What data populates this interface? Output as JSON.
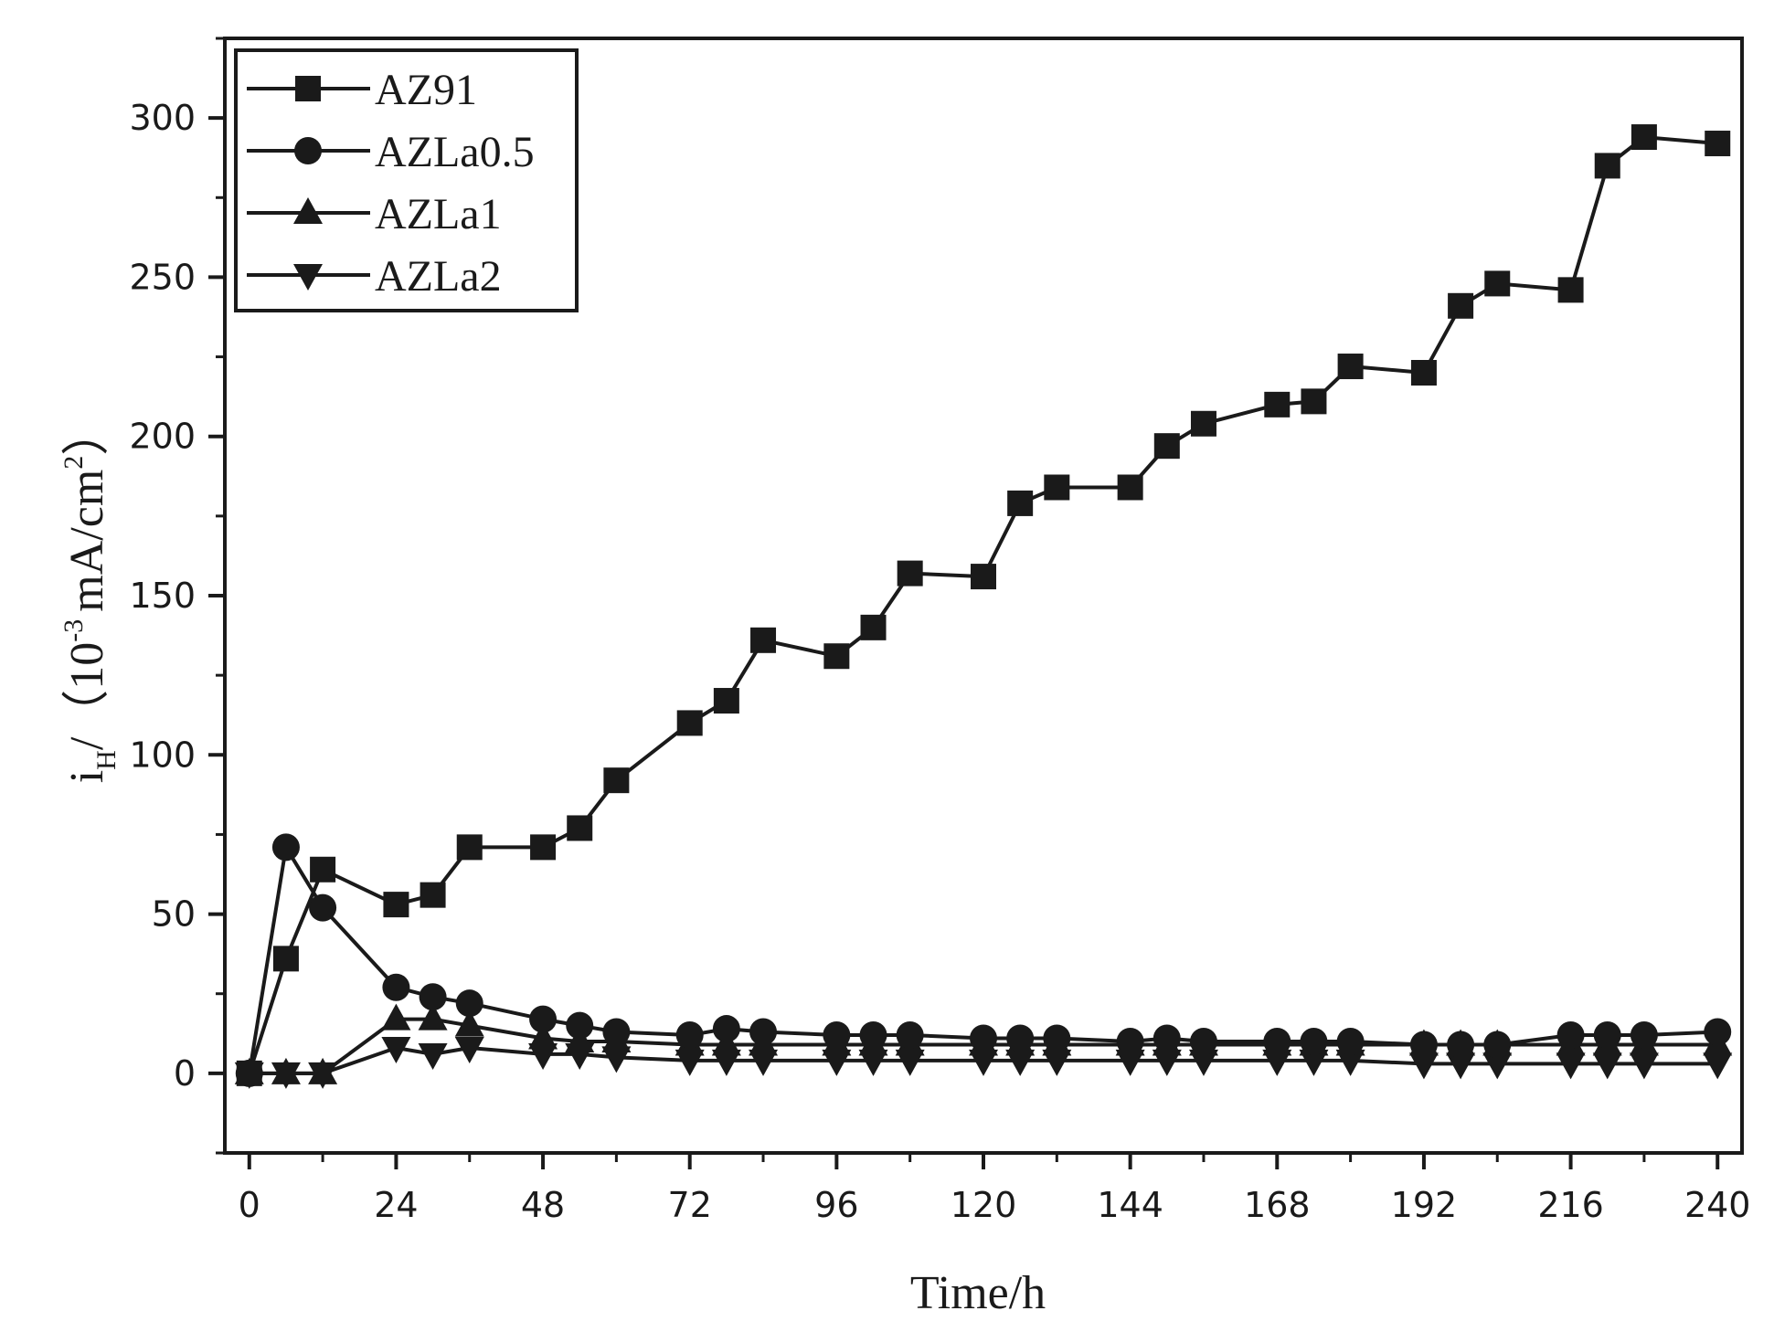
{
  "chart_data": {
    "type": "line",
    "title": "",
    "xlabel": "Time/h",
    "ylabel": {
      "base": "i",
      "subscript": "H",
      "open": "/（10",
      "exponent": "-3",
      "unit": "mA/cm",
      "unit_exponent": "2",
      "close": "）"
    },
    "xlim": [
      -4,
      244
    ],
    "ylim": [
      -25,
      325
    ],
    "xticks": [
      "0",
      "24",
      "48",
      "72",
      "96",
      "120",
      "144",
      "168",
      "192",
      "216",
      "240"
    ],
    "xtick_values": [
      0,
      24,
      48,
      72,
      96,
      120,
      144,
      168,
      192,
      216,
      240
    ],
    "yticks": [
      "0",
      "50",
      "100",
      "150",
      "200",
      "250",
      "300"
    ],
    "ytick_values": [
      0,
      50,
      100,
      150,
      200,
      250,
      300
    ],
    "grid": false,
    "legend_position": "top-left",
    "series": [
      {
        "name": "AZ91",
        "marker": "square",
        "points": [
          [
            0,
            0
          ],
          [
            6,
            36
          ],
          [
            12,
            64
          ],
          [
            24,
            53
          ],
          [
            30,
            56
          ],
          [
            36,
            71
          ],
          [
            48,
            71
          ],
          [
            54,
            77
          ],
          [
            60,
            92
          ],
          [
            72,
            110
          ],
          [
            78,
            117
          ],
          [
            84,
            136
          ],
          [
            96,
            131
          ],
          [
            102,
            140
          ],
          [
            108,
            157
          ],
          [
            120,
            156
          ],
          [
            126,
            179
          ],
          [
            132,
            184
          ],
          [
            144,
            184
          ],
          [
            150,
            197
          ],
          [
            156,
            204
          ],
          [
            168,
            210
          ],
          [
            174,
            211
          ],
          [
            180,
            222
          ],
          [
            192,
            220
          ],
          [
            198,
            241
          ],
          [
            204,
            248
          ],
          [
            216,
            246
          ],
          [
            222,
            285
          ],
          [
            228,
            294
          ],
          [
            240,
            292
          ]
        ]
      },
      {
        "name": "AZLa0.5",
        "marker": "circle",
        "points": [
          [
            0,
            0
          ],
          [
            6,
            71
          ],
          [
            12,
            52
          ],
          [
            24,
            27
          ],
          [
            30,
            24
          ],
          [
            36,
            22
          ],
          [
            48,
            17
          ],
          [
            54,
            15
          ],
          [
            60,
            13
          ],
          [
            72,
            12
          ],
          [
            78,
            14
          ],
          [
            84,
            13
          ],
          [
            96,
            12
          ],
          [
            102,
            12
          ],
          [
            108,
            12
          ],
          [
            120,
            11
          ],
          [
            126,
            11
          ],
          [
            132,
            11
          ],
          [
            144,
            10
          ],
          [
            150,
            11
          ],
          [
            156,
            10
          ],
          [
            168,
            10
          ],
          [
            174,
            10
          ],
          [
            180,
            10
          ],
          [
            192,
            9
          ],
          [
            198,
            9
          ],
          [
            204,
            9
          ],
          [
            216,
            12
          ],
          [
            222,
            12
          ],
          [
            228,
            12
          ],
          [
            240,
            13
          ]
        ]
      },
      {
        "name": "AZLa1",
        "marker": "triangle-up",
        "points": [
          [
            0,
            0
          ],
          [
            6,
            0
          ],
          [
            12,
            0
          ],
          [
            24,
            17
          ],
          [
            30,
            17
          ],
          [
            36,
            15
          ],
          [
            48,
            11
          ],
          [
            54,
            10
          ],
          [
            60,
            10
          ],
          [
            72,
            9
          ],
          [
            78,
            9
          ],
          [
            84,
            9
          ],
          [
            96,
            9
          ],
          [
            102,
            9
          ],
          [
            108,
            9
          ],
          [
            120,
            9
          ],
          [
            126,
            9
          ],
          [
            132,
            9
          ],
          [
            144,
            9
          ],
          [
            150,
            9
          ],
          [
            156,
            9
          ],
          [
            168,
            9
          ],
          [
            174,
            9
          ],
          [
            180,
            9
          ],
          [
            192,
            9
          ],
          [
            198,
            9
          ],
          [
            204,
            9
          ],
          [
            216,
            9
          ],
          [
            222,
            9
          ],
          [
            228,
            9
          ],
          [
            240,
            9
          ]
        ]
      },
      {
        "name": "AZLa2",
        "marker": "triangle-down",
        "points": [
          [
            0,
            0
          ],
          [
            6,
            0
          ],
          [
            12,
            0
          ],
          [
            24,
            8
          ],
          [
            30,
            6
          ],
          [
            36,
            8
          ],
          [
            48,
            6
          ],
          [
            54,
            6
          ],
          [
            60,
            5
          ],
          [
            72,
            4
          ],
          [
            78,
            4
          ],
          [
            84,
            4
          ],
          [
            96,
            4
          ],
          [
            102,
            4
          ],
          [
            108,
            4
          ],
          [
            120,
            4
          ],
          [
            126,
            4
          ],
          [
            132,
            4
          ],
          [
            144,
            4
          ],
          [
            150,
            4
          ],
          [
            156,
            4
          ],
          [
            168,
            4
          ],
          [
            174,
            4
          ],
          [
            180,
            4
          ],
          [
            192,
            3
          ],
          [
            198,
            3
          ],
          [
            204,
            3
          ],
          [
            216,
            3
          ],
          [
            222,
            3
          ],
          [
            228,
            3
          ],
          [
            240,
            3
          ]
        ]
      }
    ]
  }
}
